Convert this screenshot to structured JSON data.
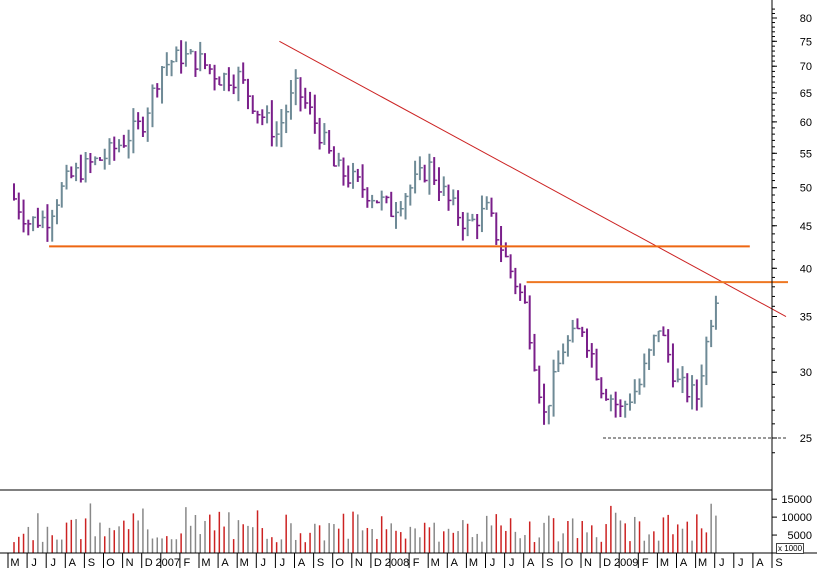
{
  "chart_data": [
    {
      "type": "ohlc",
      "title": "",
      "xlabel": "",
      "ylabel": "",
      "y_scale": "log",
      "ylim": [
        23,
        82
      ],
      "y_ticks": [
        25,
        30,
        35,
        40,
        45,
        50,
        55,
        60,
        65,
        70,
        75,
        80
      ],
      "x_tick_labels": [
        "M",
        "J",
        "J",
        "A",
        "S",
        "O",
        "N",
        "D",
        "2007",
        "F",
        "M",
        "A",
        "M",
        "J",
        "J",
        "A",
        "S",
        "O",
        "N",
        "D",
        "2008",
        "F",
        "M",
        "A",
        "M",
        "J",
        "J",
        "A",
        "S",
        "O",
        "N",
        "D",
        "2009",
        "F",
        "M",
        "A",
        "M",
        "J",
        "J",
        "A",
        "S"
      ],
      "grid": false,
      "up_color": "#6e8a96",
      "down_color": "#7a1f8a",
      "monthly_closes": [
        49.5,
        45.5,
        46,
        51,
        53,
        54.5,
        57,
        60,
        70,
        72,
        71,
        68,
        68,
        62,
        58,
        66,
        60,
        53,
        51,
        49,
        47,
        50,
        53,
        48,
        45,
        47,
        41,
        36,
        26.5,
        32,
        34,
        29,
        27,
        29,
        34,
        29,
        28,
        37
      ],
      "price_range_extremes": {
        "high": 75,
        "low": 24
      },
      "annotations": [
        {
          "kind": "trendline",
          "from": [
            "2007-07",
            75
          ],
          "to": [
            "2009-09",
            35
          ],
          "color": "#cc2222"
        },
        {
          "kind": "horizontal",
          "level": 42.5,
          "from": "2006-06",
          "to": "2009-07",
          "color": "#ee6611"
        },
        {
          "kind": "horizontal",
          "level": 38.5,
          "from": "2008-07",
          "to": "2009-09",
          "color": "#ee7722"
        },
        {
          "kind": "horizontal-dashed",
          "level": 25,
          "from": "2008-11",
          "to": "2009-09",
          "color": "#333333"
        }
      ]
    },
    {
      "type": "bar",
      "title": "",
      "ylabel": "",
      "y_ticks": [
        5000,
        10000,
        15000
      ],
      "ylim": [
        0,
        17000
      ],
      "unit_label": "x 1000",
      "colors": {
        "up": "#888888",
        "down": "#cc2222"
      },
      "volume_range": [
        3000,
        15000
      ]
    }
  ]
}
